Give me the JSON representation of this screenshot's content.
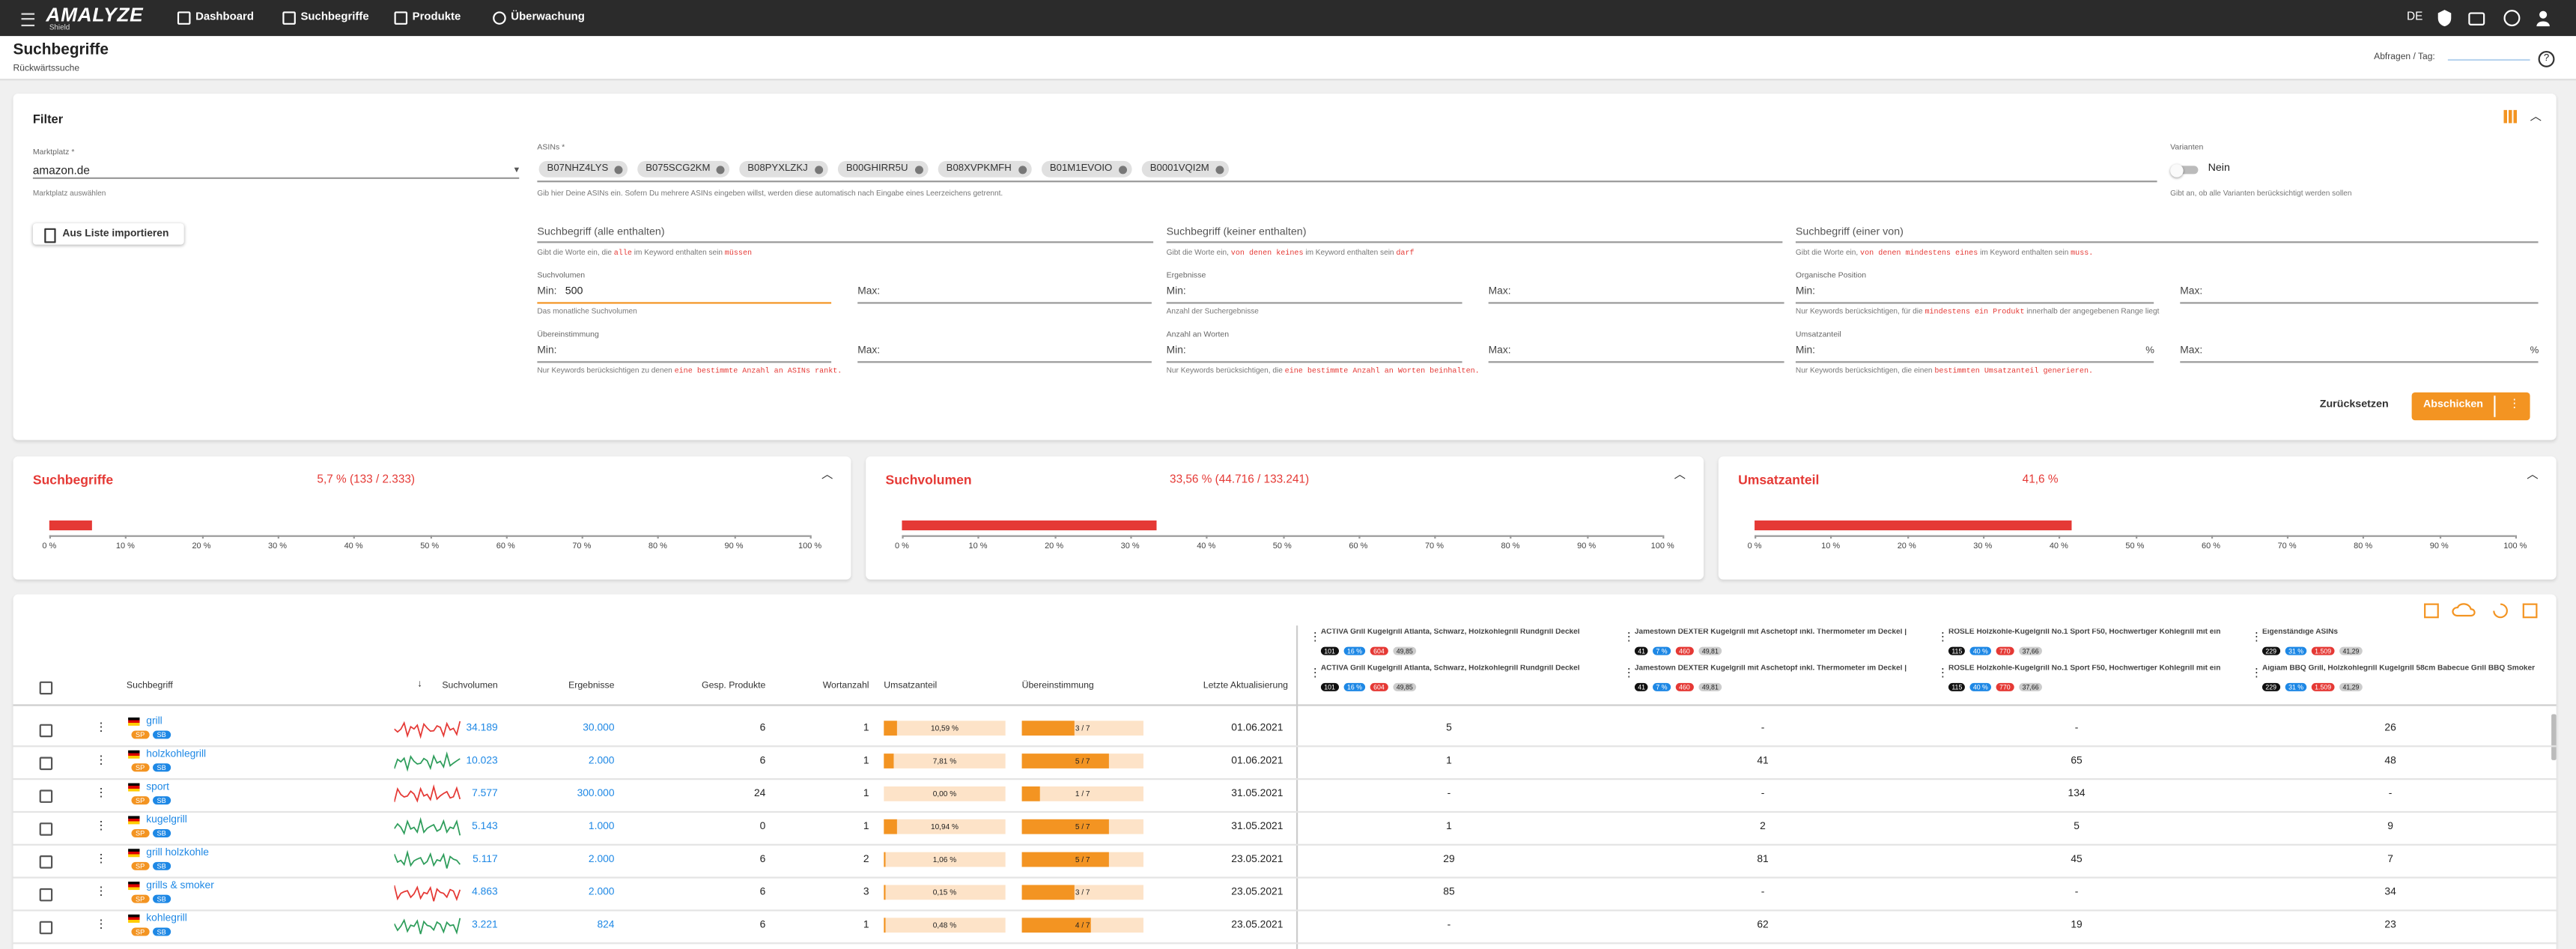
{
  "header": {
    "logo": "AMALYZE",
    "logo_sub": "Shield",
    "nav": [
      "Dashboard",
      "Suchbegriffe",
      "Produkte",
      "Überwachung"
    ],
    "language": "DE"
  },
  "page": {
    "title": "Suchbegriffe",
    "subtitle": "Rückwärtssuche",
    "quota_label": "Abfragen / Tag:"
  },
  "filter": {
    "title": "Filter",
    "marketplace": {
      "label": "Marktplatz *",
      "value": "amazon.de",
      "help": "Marktplatz auswählen"
    },
    "asins": {
      "label": "ASINs *",
      "chips": [
        "B07NHZ4LYS",
        "B075SCG2KM",
        "B08PYXLZKJ",
        "B00GHIRR5U",
        "B08XVPKMFH",
        "B01M1EVOIO",
        "B0001VQI2M"
      ],
      "help": "Gib hier Deine ASINs ein. Sofern Du mehrere ASINs eingeben willst, werden diese automatisch nach Eingabe eines Leerzeichens getrennt."
    },
    "variants": {
      "label": "Varianten",
      "value": "Nein",
      "help": "Gibt an, ob alle Varianten berücksichtigt werden sollen"
    },
    "import_button": "Aus Liste importieren",
    "min_label": "Min:",
    "max_label": "Max:",
    "percent_sign": "%",
    "keyword_fields": [
      {
        "label": "Suchbegriff (alle enthalten)",
        "help": [
          {
            "text": "Gibt die Worte ein, die "
          },
          {
            "text": "alle",
            "code": true
          },
          {
            "text": " im Keyword enthalten sein "
          },
          {
            "text": "müssen",
            "code": true
          }
        ]
      },
      {
        "label": "Suchbegriff (keiner enthalten)",
        "help": [
          {
            "text": "Gibt die Worte ein, "
          },
          {
            "text": "von denen keines",
            "code": true
          },
          {
            "text": " im Keyword enthalten sein "
          },
          {
            "text": "darf",
            "code": true
          }
        ]
      },
      {
        "label": "Suchbegriff (einer von)",
        "help": [
          {
            "text": "Gibt die Worte ein, "
          },
          {
            "text": "von denen mindestens eines",
            "code": true
          },
          {
            "text": " im Keyword enthalten sein "
          },
          {
            "text": "muss.",
            "code": true
          }
        ]
      }
    ],
    "range_fields": [
      {
        "label": "Suchvolumen",
        "min": "500",
        "help": [
          {
            "text": "Das monatliche Suchvolumen"
          }
        ]
      },
      {
        "label": "Ergebnisse",
        "help": [
          {
            "text": "Anzahl der Suchergebnisse"
          }
        ]
      },
      {
        "label": "Organische Position",
        "help": [
          {
            "text": "Nur Keywords berücksichtigen, für die "
          },
          {
            "text": "mindestens ein Produkt",
            "code": true
          },
          {
            "text": " innerhalb der angegebenen Range liegt"
          }
        ]
      },
      {
        "label": "Übereinstimmung",
        "help": [
          {
            "text": "Nur Keywords berücksichtigen zu denen "
          },
          {
            "text": "eine bestimmte Anzahl an ASINs rankt.",
            "code": true
          }
        ]
      },
      {
        "label": "Anzahl an Worten",
        "help": [
          {
            "text": "Nur Keywords berücksichtigen, die "
          },
          {
            "text": "eine bestimmte Anzahl an Worten beinhalten.",
            "code": true
          }
        ]
      },
      {
        "label": "Umsatzanteil",
        "percent": true,
        "help": [
          {
            "text": "Nur Keywords berücksichtigen, die einen "
          },
          {
            "text": "bestimmten Umsatzanteil generieren.",
            "code": true
          }
        ]
      }
    ],
    "reset_button": "Zurücksetzen",
    "submit_button": "Abschicken"
  },
  "chart_data": [
    {
      "type": "bar",
      "title": "Suchbegriffe",
      "values": [
        5.7
      ],
      "value_labels": [
        "5,7 % (133 / 2.333)"
      ],
      "color": "#e53935",
      "xlim": [
        0,
        100
      ],
      "xticks": [
        {
          "value": 0,
          "label": "0 %"
        },
        {
          "value": 10,
          "label": "10 %"
        },
        {
          "value": 20,
          "label": "20 %"
        },
        {
          "value": 30,
          "label": "30 %"
        },
        {
          "value": 40,
          "label": "40 %"
        },
        {
          "value": 50,
          "label": "50 %"
        },
        {
          "value": 60,
          "label": "60 %"
        },
        {
          "value": 70,
          "label": "70 %"
        },
        {
          "value": 80,
          "label": "80 %"
        },
        {
          "value": 90,
          "label": "90 %"
        },
        {
          "value": 100,
          "label": "100 %"
        }
      ]
    },
    {
      "type": "bar",
      "title": "Suchvolumen",
      "values": [
        33.56
      ],
      "value_labels": [
        "33,56 % (44.716 / 133.241)"
      ],
      "color": "#e53935",
      "xlim": [
        0,
        100
      ],
      "xticks": [
        {
          "value": 0,
          "label": "0 %"
        },
        {
          "value": 10,
          "label": "10 %"
        },
        {
          "value": 20,
          "label": "20 %"
        },
        {
          "value": 30,
          "label": "30 %"
        },
        {
          "value": 40,
          "label": "40 %"
        },
        {
          "value": 50,
          "label": "50 %"
        },
        {
          "value": 60,
          "label": "60 %"
        },
        {
          "value": 70,
          "label": "70 %"
        },
        {
          "value": 80,
          "label": "80 %"
        },
        {
          "value": 90,
          "label": "90 %"
        },
        {
          "value": 100,
          "label": "100 %"
        }
      ]
    },
    {
      "type": "bar",
      "title": "Umsatzanteil",
      "values": [
        41.6
      ],
      "value_labels": [
        "41,6 %"
      ],
      "color": "#e53935",
      "xlim": [
        0,
        100
      ],
      "xticks": [
        {
          "value": 0,
          "label": "0 %"
        },
        {
          "value": 10,
          "label": "10 %"
        },
        {
          "value": 20,
          "label": "20 %"
        },
        {
          "value": 30,
          "label": "30 %"
        },
        {
          "value": 40,
          "label": "40 %"
        },
        {
          "value": 50,
          "label": "50 %"
        },
        {
          "value": 60,
          "label": "60 %"
        },
        {
          "value": 70,
          "label": "70 %"
        },
        {
          "value": 80,
          "label": "80 %"
        },
        {
          "value": 90,
          "label": "90 %"
        },
        {
          "value": 100,
          "label": "100 %"
        }
      ]
    }
  ],
  "table": {
    "columns": [
      "Suchbegriff",
      "Suchvolumen",
      "Ergebnisse",
      "Gesp. Produkte",
      "Wortanzahl",
      "Umsatzanteil",
      "Übereinstimmung",
      "Letzte Aktualisierung"
    ],
    "products": [
      {
        "rows": [
          {
            "name": "ACTIVA Grill Kugelgrill Atlanta, Schwarz, Holzkohlegrill Rundgrill Deckel",
            "stats": [
              "101",
              "16 %",
              "604",
              "49,85"
            ]
          },
          {
            "name": "ACTIVA Grill Kugelgrill Atlanta, Schwarz, Holzkohlegrill Rundgrill Deckel",
            "stats": [
              "101",
              "16 %",
              "604",
              "49,85"
            ]
          }
        ]
      },
      {
        "rows": [
          {
            "name": "Jamestown DEXTER Kugelgrill mit Aschetopf inkl. Thermometer im Deckel |",
            "stats": [
              "41",
              "7 %",
              "460",
              "49,81"
            ]
          },
          {
            "name": "Jamestown DEXTER Kugelgrill mit Aschetopf inkl. Thermometer im Deckel |",
            "stats": [
              "41",
              "7 %",
              "460",
              "49,81"
            ]
          }
        ]
      },
      {
        "rows": [
          {
            "name": "RÖSLE Holzkohle-Kugelgrill No.1 Sport F50, Hochwertiger Kohlegrill mit ein",
            "stats": [
              "115",
              "40 %",
              "770",
              "37,66"
            ]
          },
          {
            "name": "RÖSLE Holzkohle-Kugelgrill No.1 Sport F50, Hochwertiger Kohlegrill mit ein",
            "stats": [
              "115",
              "40 %",
              "770",
              "37,66"
            ]
          }
        ]
      },
      {
        "rows": [
          {
            "name": "Eigenständige ASINs",
            "stats": [
              "229",
              "31 %",
              "1.509",
              "41,29"
            ]
          },
          {
            "name": "Aigiam BBQ Grill, Holzkohlegrill Kugelgrill 58cm Babecue Grill BBQ Smoker",
            "stats": [
              "229",
              "31 %",
              "1.509",
              "41,29"
            ]
          }
        ]
      }
    ],
    "rows": [
      {
        "keyword": "grill",
        "badges": [
          "SP",
          "SB"
        ],
        "spark_color": "#e53935",
        "volume": "34.189",
        "results": "30.000",
        "products": "6",
        "words": "1",
        "umsatz": {
          "value": 10.59,
          "label": "10,59 %"
        },
        "match": {
          "value": 3,
          "total": 7,
          "label": "3 / 7"
        },
        "updated": "01.06.2021",
        "ranks": [
          "5",
          "-",
          "-",
          "26"
        ]
      },
      {
        "keyword": "holzkohlegrill",
        "badges": [
          "SP",
          "SB"
        ],
        "spark_color": "#2e9d5b",
        "volume": "10.023",
        "results": "2.000",
        "products": "6",
        "words": "1",
        "umsatz": {
          "value": 7.81,
          "label": "7,81 %"
        },
        "match": {
          "value": 5,
          "total": 7,
          "label": "5 / 7"
        },
        "updated": "01.06.2021",
        "ranks": [
          "1",
          "41",
          "65",
          "48"
        ]
      },
      {
        "keyword": "sport",
        "badges": [
          "SP",
          "SB"
        ],
        "spark_color": "#e53935",
        "volume": "7.577",
        "results": "300.000",
        "products": "24",
        "words": "1",
        "umsatz": {
          "value": 0,
          "label": "0,00 %"
        },
        "match": {
          "value": 1,
          "total": 7,
          "label": "1 / 7"
        },
        "updated": "31.05.2021",
        "ranks": [
          "-",
          "-",
          "134",
          "-"
        ]
      },
      {
        "keyword": "kugelgrill",
        "badges": [
          "SP",
          "SB"
        ],
        "spark_color": "#2e9d5b",
        "volume": "5.143",
        "results": "1.000",
        "products": "0",
        "words": "1",
        "umsatz": {
          "value": 10.94,
          "label": "10,94 %"
        },
        "match": {
          "value": 5,
          "total": 7,
          "label": "5 / 7"
        },
        "updated": "31.05.2021",
        "ranks": [
          "1",
          "2",
          "5",
          "9"
        ]
      },
      {
        "keyword": "grill holzkohle",
        "badges": [
          "SP",
          "SB"
        ],
        "spark_color": "#2e9d5b",
        "volume": "5.117",
        "results": "2.000",
        "products": "6",
        "words": "2",
        "umsatz": {
          "value": 1.06,
          "label": "1,06 %"
        },
        "match": {
          "value": 5,
          "total": 7,
          "label": "5 / 7"
        },
        "updated": "23.05.2021",
        "ranks": [
          "29",
          "81",
          "45",
          "7"
        ]
      },
      {
        "keyword": "grills & smoker",
        "badges": [
          "SP",
          "SB"
        ],
        "spark_color": "#e53935",
        "volume": "4.863",
        "results": "2.000",
        "products": "6",
        "words": "3",
        "umsatz": {
          "value": 0.15,
          "label": "0,15 %"
        },
        "match": {
          "value": 3,
          "total": 7,
          "label": "3 / 7"
        },
        "updated": "23.05.2021",
        "ranks": [
          "85",
          "-",
          "-",
          "34"
        ]
      },
      {
        "keyword": "kohlegrill",
        "badges": [
          "SP",
          "SB"
        ],
        "spark_color": "#2e9d5b",
        "volume": "3.221",
        "results": "824",
        "products": "6",
        "words": "1",
        "umsatz": {
          "value": 0.48,
          "label": "0,48 %"
        },
        "match": {
          "value": 4,
          "total": 7,
          "label": "4 / 7"
        },
        "updated": "23.05.2021",
        "ranks": [
          "-",
          "62",
          "19",
          "23"
        ]
      }
    ]
  }
}
